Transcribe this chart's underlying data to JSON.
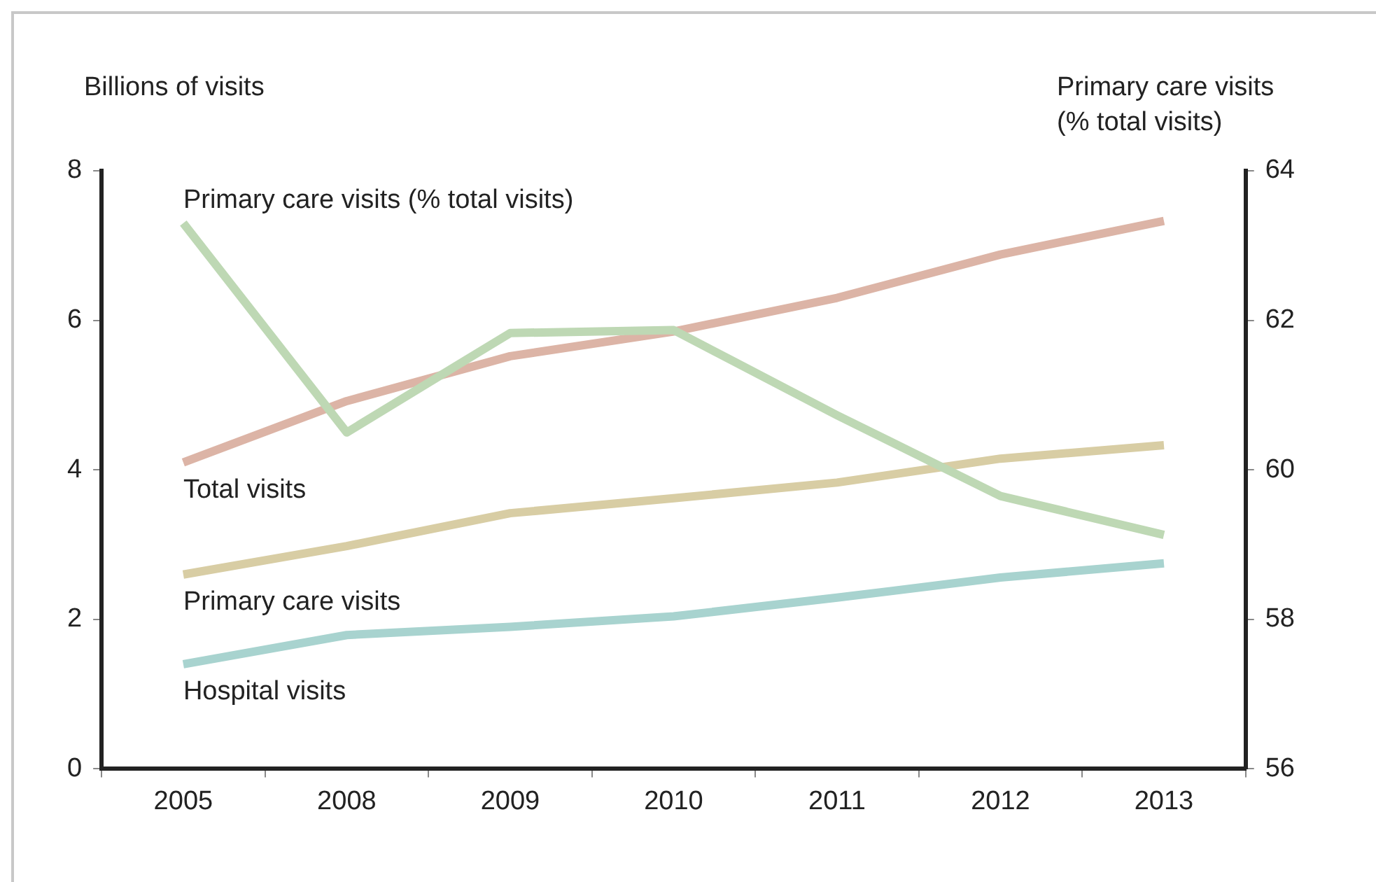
{
  "chart_data": {
    "type": "line",
    "ylabel": "Billions of visits",
    "y2label": "Primary care visits\n(% total visits)",
    "categories": [
      "2005",
      "2008",
      "2009",
      "2010",
      "2011",
      "2012",
      "2013"
    ],
    "series": [
      {
        "name": "Primary care visits (% total visits)",
        "color": "#bed8b4",
        "axis": "y2",
        "values": [
          63.3,
          60.5,
          61.83,
          61.87,
          60.73,
          59.65,
          59.13
        ]
      },
      {
        "name": "Total visits",
        "color": "#dcb4a6",
        "values": [
          4.1,
          4.92,
          5.52,
          5.85,
          6.3,
          6.88,
          7.33
        ]
      },
      {
        "name": "Primary care visits",
        "color": "#d8cda4",
        "values": [
          2.6,
          2.98,
          3.42,
          3.62,
          3.83,
          4.15,
          4.33
        ]
      },
      {
        "name": "Hospital visits",
        "color": "#a8d3cf",
        "values": [
          1.4,
          1.79,
          1.9,
          2.04,
          2.29,
          2.56,
          2.75
        ]
      }
    ],
    "ylim": [
      0,
      8
    ],
    "yticks": [
      0,
      2,
      4,
      6,
      8
    ],
    "y2lim": [
      56,
      64
    ],
    "y2ticks": [
      56,
      58,
      60,
      62,
      64
    ],
    "grid": false,
    "legend": false,
    "marker": "none",
    "line_style": "solid"
  }
}
